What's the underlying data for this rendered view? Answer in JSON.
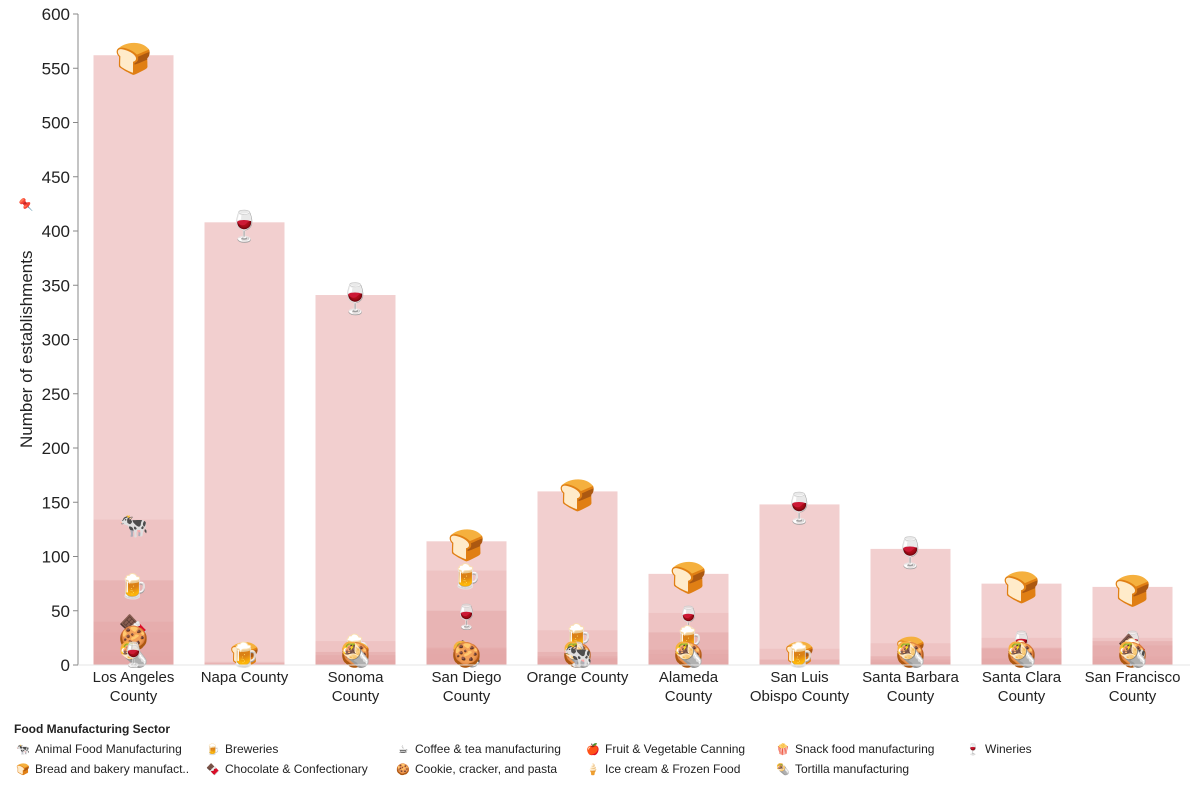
{
  "chart_data": {
    "type": "bar",
    "title": "",
    "ylabel": "Number of establishments",
    "ylim": [
      0,
      600
    ],
    "yticks": [
      0,
      50,
      100,
      150,
      200,
      250,
      300,
      350,
      400,
      450,
      500,
      550,
      600
    ],
    "categories": [
      [
        "Los Angeles",
        "County"
      ],
      [
        "Napa County"
      ],
      [
        "Sonoma",
        "County"
      ],
      [
        "San Diego",
        "County"
      ],
      [
        "Orange County"
      ],
      [
        "Alameda",
        "County"
      ],
      [
        "San Luis",
        "Obispo County"
      ],
      [
        "Santa Barbara",
        "County"
      ],
      [
        "Santa Clara",
        "County"
      ],
      [
        "San Francisco",
        "County"
      ]
    ],
    "series": [
      {
        "name": "Bread and bakery manufacturing",
        "values": [
          562,
          3,
          12,
          114,
          160,
          84,
          15,
          20,
          75,
          72
        ]
      },
      {
        "name": "Animal Food Manufacturing",
        "values": [
          134,
          0,
          9,
          14,
          5,
          14,
          0,
          5,
          15,
          5
        ]
      },
      {
        "name": "Breweries",
        "values": [
          78,
          2,
          22,
          87,
          32,
          30,
          5,
          8,
          16,
          18
        ]
      },
      {
        "name": "Chocolate & Confectionary",
        "values": [
          40,
          0,
          5,
          16,
          12,
          10,
          0,
          3,
          6,
          22
        ]
      },
      {
        "name": "Wineries",
        "values": [
          8,
          408,
          341,
          50,
          6,
          48,
          148,
          107,
          25,
          25
        ]
      },
      {
        "name": "Cookie, cracker, and pasta",
        "values": [
          30,
          0,
          4,
          10,
          8,
          6,
          0,
          2,
          5,
          8
        ]
      },
      {
        "name": "Tortilla manufacturing",
        "values": [
          12,
          0,
          3,
          15,
          6,
          2,
          0,
          1,
          4,
          3
        ]
      }
    ],
    "visible_totals": [
      562,
      408,
      341,
      114,
      160,
      84,
      148,
      107,
      75,
      72
    ],
    "legend_placement": "bottom"
  },
  "legend": {
    "title": "Food Manufacturing Sector",
    "items": [
      {
        "label": "Animal Food Manufacturing",
        "icon": "🐄"
      },
      {
        "label": "Bread and bakery manufact..",
        "icon": "🍞"
      },
      {
        "label": "Breweries",
        "icon": "🍺"
      },
      {
        "label": "Chocolate & Confectionary",
        "icon": "🍫"
      },
      {
        "label": "Coffee & tea manufacturing",
        "icon": "☕"
      },
      {
        "label": "Cookie, cracker, and pasta",
        "icon": "🍪"
      },
      {
        "label": "Fruit & Vegetable Canning",
        "icon": "🍎"
      },
      {
        "label": "Ice cream & Frozen Food",
        "icon": "🍦"
      },
      {
        "label": "Snack food manufacturing",
        "icon": "🍿"
      },
      {
        "label": "Tortilla manufacturing",
        "icon": "🌯"
      },
      {
        "label": "Wineries",
        "icon": "🍷"
      },
      {
        "label": "",
        "icon": ""
      }
    ]
  },
  "icons": {
    "bread": "🍞",
    "wine": "🍷",
    "beer": "🍺",
    "cow": "🐄",
    "chocolate": "🍫",
    "cookie": "🍪"
  },
  "colors": {
    "bar_light": "#f2cfcf",
    "bar_mid": "#ebbaba",
    "bar_dark": "#e3a7a7",
    "axis": "#888888"
  }
}
